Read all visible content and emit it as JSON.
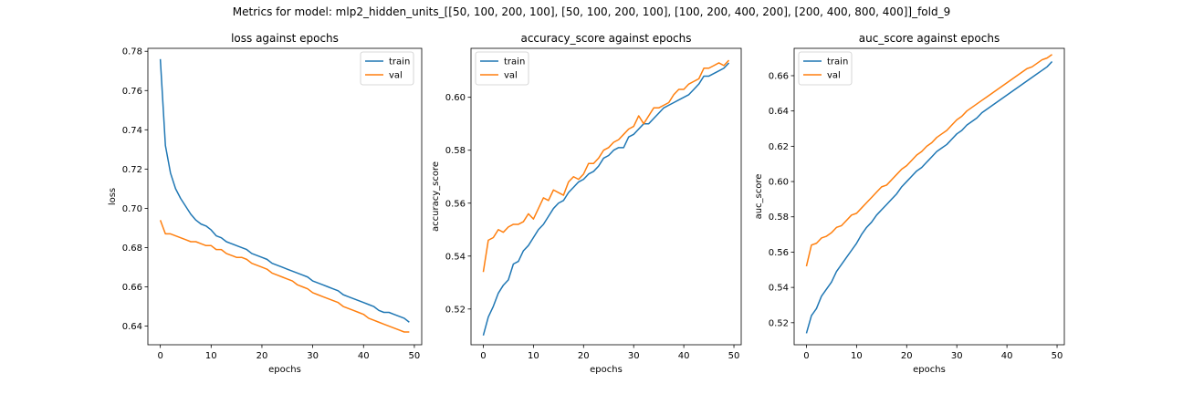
{
  "suptitle": "Metrics for model: mlp2_hidden_units_[[50, 100, 200, 100], [50, 100, 200, 100], [100, 200, 400, 200], [200, 400, 800, 400]]_fold_9",
  "colors": {
    "train": "#1f77b4",
    "val": "#ff7f0e",
    "axis": "#000000"
  },
  "chart_data": [
    {
      "type": "line",
      "title": "loss against epochs",
      "xlabel": "epochs",
      "ylabel": "loss",
      "xlim": [
        -2.45,
        51.45
      ],
      "ylim": [
        0.6305,
        0.7815
      ],
      "xticks": [
        0,
        10,
        20,
        30,
        40,
        50
      ],
      "yticks": [
        0.64,
        0.66,
        0.68,
        0.7,
        0.72,
        0.74,
        0.76,
        0.78
      ],
      "ytick_decimals": 2,
      "legend": "top-right",
      "grid": false,
      "series": [
        {
          "name": "train",
          "color_key": "train",
          "values": [
            0.776,
            0.732,
            0.718,
            0.71,
            0.705,
            0.701,
            0.697,
            0.694,
            0.692,
            0.691,
            0.689,
            0.686,
            0.685,
            0.683,
            0.682,
            0.681,
            0.68,
            0.679,
            0.677,
            0.676,
            0.675,
            0.674,
            0.672,
            0.671,
            0.67,
            0.669,
            0.668,
            0.667,
            0.666,
            0.665,
            0.663,
            0.662,
            0.661,
            0.66,
            0.659,
            0.658,
            0.656,
            0.655,
            0.654,
            0.653,
            0.652,
            0.651,
            0.65,
            0.648,
            0.647,
            0.647,
            0.646,
            0.645,
            0.644,
            0.642
          ]
        },
        {
          "name": "val",
          "color_key": "val",
          "values": [
            0.694,
            0.687,
            0.687,
            0.686,
            0.685,
            0.684,
            0.683,
            0.683,
            0.682,
            0.681,
            0.681,
            0.679,
            0.679,
            0.677,
            0.676,
            0.675,
            0.675,
            0.674,
            0.672,
            0.671,
            0.67,
            0.669,
            0.667,
            0.666,
            0.665,
            0.664,
            0.663,
            0.661,
            0.66,
            0.659,
            0.657,
            0.656,
            0.655,
            0.654,
            0.653,
            0.652,
            0.65,
            0.649,
            0.648,
            0.647,
            0.646,
            0.644,
            0.643,
            0.642,
            0.641,
            0.64,
            0.639,
            0.638,
            0.637,
            0.637
          ]
        }
      ]
    },
    {
      "type": "line",
      "title": "accuracy_score against epochs",
      "xlabel": "epochs",
      "ylabel": "accuracy_score",
      "xlim": [
        -2.45,
        51.45
      ],
      "ylim": [
        0.5065,
        0.6185
      ],
      "xticks": [
        0,
        10,
        20,
        30,
        40,
        50
      ],
      "yticks": [
        0.52,
        0.54,
        0.56,
        0.58,
        0.6
      ],
      "ytick_decimals": 2,
      "legend": "top-left",
      "grid": false,
      "series": [
        {
          "name": "train",
          "color_key": "train",
          "values": [
            0.51,
            0.517,
            0.521,
            0.526,
            0.529,
            0.531,
            0.537,
            0.538,
            0.542,
            0.544,
            0.547,
            0.55,
            0.552,
            0.555,
            0.558,
            0.56,
            0.561,
            0.564,
            0.566,
            0.568,
            0.569,
            0.571,
            0.572,
            0.574,
            0.577,
            0.578,
            0.58,
            0.581,
            0.581,
            0.585,
            0.586,
            0.588,
            0.59,
            0.59,
            0.592,
            0.594,
            0.596,
            0.597,
            0.598,
            0.599,
            0.6,
            0.601,
            0.603,
            0.605,
            0.608,
            0.608,
            0.609,
            0.61,
            0.611,
            0.613
          ]
        },
        {
          "name": "val",
          "color_key": "val",
          "values": [
            0.534,
            0.546,
            0.547,
            0.55,
            0.549,
            0.551,
            0.552,
            0.552,
            0.553,
            0.556,
            0.554,
            0.558,
            0.562,
            0.561,
            0.565,
            0.564,
            0.563,
            0.568,
            0.57,
            0.569,
            0.571,
            0.575,
            0.575,
            0.577,
            0.58,
            0.581,
            0.583,
            0.584,
            0.586,
            0.588,
            0.589,
            0.593,
            0.59,
            0.593,
            0.596,
            0.596,
            0.597,
            0.598,
            0.601,
            0.603,
            0.603,
            0.605,
            0.606,
            0.607,
            0.611,
            0.611,
            0.612,
            0.613,
            0.612,
            0.614
          ]
        }
      ]
    },
    {
      "type": "line",
      "title": "auc_score against epochs",
      "xlabel": "epochs",
      "ylabel": "auc_score",
      "xlim": [
        -2.45,
        51.45
      ],
      "ylim": [
        0.5075,
        0.6755
      ],
      "xticks": [
        0,
        10,
        20,
        30,
        40,
        50
      ],
      "yticks": [
        0.52,
        0.54,
        0.56,
        0.58,
        0.6,
        0.62,
        0.64,
        0.66
      ],
      "ytick_decimals": 2,
      "legend": "top-left",
      "grid": false,
      "series": [
        {
          "name": "train",
          "color_key": "train",
          "values": [
            0.514,
            0.524,
            0.528,
            0.535,
            0.539,
            0.543,
            0.549,
            0.553,
            0.557,
            0.561,
            0.565,
            0.57,
            0.574,
            0.577,
            0.581,
            0.584,
            0.587,
            0.59,
            0.593,
            0.597,
            0.6,
            0.603,
            0.606,
            0.608,
            0.611,
            0.614,
            0.617,
            0.619,
            0.621,
            0.624,
            0.627,
            0.629,
            0.632,
            0.634,
            0.636,
            0.639,
            0.641,
            0.643,
            0.645,
            0.647,
            0.649,
            0.651,
            0.653,
            0.655,
            0.657,
            0.659,
            0.661,
            0.663,
            0.665,
            0.668
          ]
        },
        {
          "name": "val",
          "color_key": "val",
          "values": [
            0.552,
            0.564,
            0.565,
            0.568,
            0.569,
            0.571,
            0.574,
            0.575,
            0.578,
            0.581,
            0.582,
            0.585,
            0.588,
            0.591,
            0.594,
            0.597,
            0.598,
            0.601,
            0.604,
            0.607,
            0.609,
            0.612,
            0.615,
            0.617,
            0.62,
            0.622,
            0.625,
            0.627,
            0.629,
            0.632,
            0.635,
            0.637,
            0.64,
            0.642,
            0.644,
            0.646,
            0.648,
            0.65,
            0.652,
            0.654,
            0.656,
            0.658,
            0.66,
            0.662,
            0.664,
            0.665,
            0.667,
            0.669,
            0.67,
            0.672
          ]
        }
      ]
    }
  ]
}
